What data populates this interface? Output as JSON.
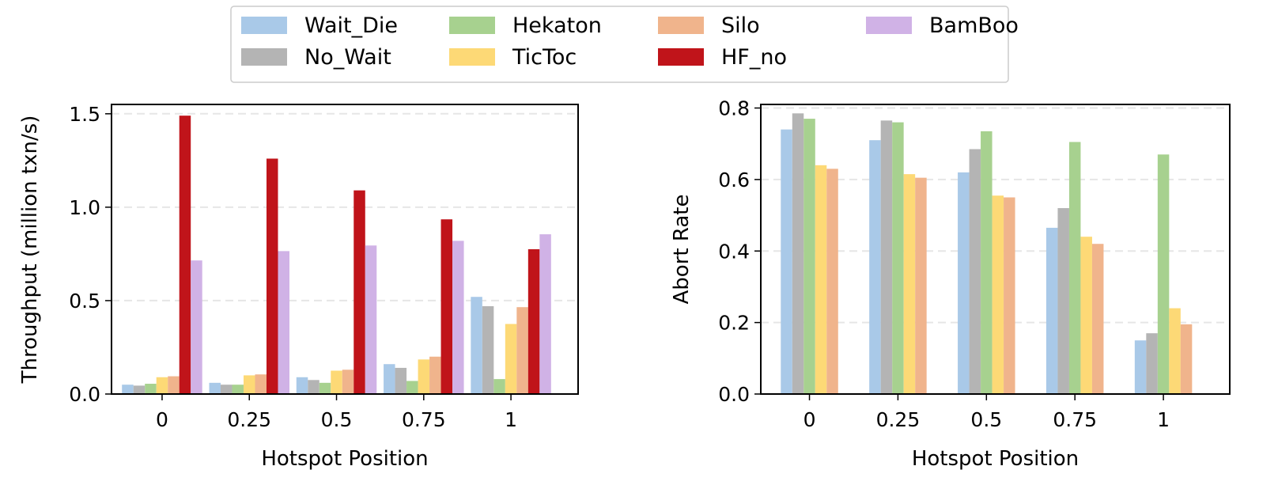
{
  "legend": {
    "entries": [
      {
        "label": "Wait_Die",
        "color": "#a9c9e8"
      },
      {
        "label": "No_Wait",
        "color": "#b4b4b4"
      },
      {
        "label": "Hekaton",
        "color": "#a7d18f"
      },
      {
        "label": "TicToc",
        "color": "#fdd976"
      },
      {
        "label": "Silo",
        "color": "#f0b48c"
      },
      {
        "label": "HF_no",
        "color": "#c0141a"
      },
      {
        "label": "BamBoo",
        "color": "#d0b2e6"
      }
    ]
  },
  "chart_data": [
    {
      "type": "bar",
      "xlabel": "Hotspot Position",
      "ylabel": "Throughput (million txn/s)",
      "categories": [
        "0",
        "0.25",
        "0.5",
        "0.75",
        "1"
      ],
      "ylim": [
        0,
        1.55
      ],
      "yticks": [
        "0.0",
        "0.5",
        "1.0",
        "1.5"
      ],
      "ytick_values": [
        0,
        0.5,
        1.0,
        1.5
      ],
      "grid": "horizontal dashed",
      "series": [
        {
          "name": "Wait_Die",
          "values": [
            0.05,
            0.06,
            0.09,
            0.16,
            0.52
          ]
        },
        {
          "name": "No_Wait",
          "values": [
            0.045,
            0.05,
            0.075,
            0.14,
            0.47
          ]
        },
        {
          "name": "Hekaton",
          "values": [
            0.055,
            0.05,
            0.06,
            0.07,
            0.08
          ]
        },
        {
          "name": "TicToc",
          "values": [
            0.09,
            0.1,
            0.125,
            0.185,
            0.375
          ]
        },
        {
          "name": "Silo",
          "values": [
            0.095,
            0.105,
            0.13,
            0.2,
            0.465
          ]
        },
        {
          "name": "HF_no",
          "values": [
            1.49,
            1.26,
            1.09,
            0.935,
            0.775
          ]
        },
        {
          "name": "BamBoo",
          "values": [
            0.715,
            0.765,
            0.795,
            0.82,
            0.855
          ]
        }
      ]
    },
    {
      "type": "bar",
      "xlabel": "Hotspot Position",
      "ylabel": "Abort Rate",
      "categories": [
        "0",
        "0.25",
        "0.5",
        "0.75",
        "1"
      ],
      "ylim": [
        0,
        0.81
      ],
      "yticks": [
        "0.0",
        "0.2",
        "0.4",
        "0.6",
        "0.8"
      ],
      "ytick_values": [
        0,
        0.2,
        0.4,
        0.6,
        0.8
      ],
      "grid": "horizontal dashed",
      "series": [
        {
          "name": "Wait_Die",
          "values": [
            0.74,
            0.71,
            0.62,
            0.465,
            0.15
          ]
        },
        {
          "name": "No_Wait",
          "values": [
            0.785,
            0.765,
            0.685,
            0.52,
            0.17
          ]
        },
        {
          "name": "Hekaton",
          "values": [
            0.77,
            0.76,
            0.735,
            0.705,
            0.67
          ]
        },
        {
          "name": "TicToc",
          "values": [
            0.64,
            0.615,
            0.555,
            0.44,
            0.24
          ]
        },
        {
          "name": "Silo",
          "values": [
            0.63,
            0.605,
            0.55,
            0.42,
            0.195
          ]
        }
      ]
    }
  ]
}
